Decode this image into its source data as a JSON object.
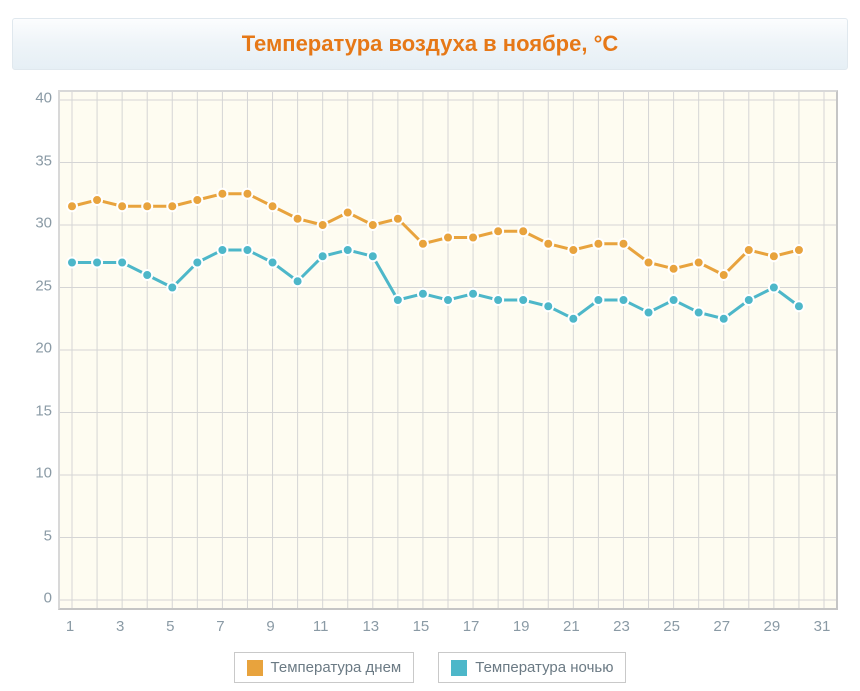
{
  "title": "Температура воздуха в ноябре, °C",
  "chart": {
    "type": "line",
    "background_color": "#fefcf1",
    "grid_color": "#d5d5d5",
    "border_color": "#c5c5c5",
    "axis_label_color": "#8a9aa5",
    "axis_fontsize": 15,
    "xlim": [
      1,
      31
    ],
    "ylim": [
      0,
      40
    ],
    "ytick_step": 5,
    "xtick_step": 2,
    "x_values": [
      1,
      2,
      3,
      4,
      5,
      6,
      7,
      8,
      9,
      10,
      11,
      12,
      13,
      14,
      15,
      16,
      17,
      18,
      19,
      20,
      21,
      22,
      23,
      24,
      25,
      26,
      27,
      28,
      29,
      30
    ],
    "marker_style": "circle",
    "marker_radius": 5,
    "marker_border_color": "#ffffff",
    "marker_border_width": 2,
    "line_width": 3,
    "series": [
      {
        "name": "day",
        "label": "Температура днем",
        "color": "#e8a33d",
        "values": [
          31.5,
          32.0,
          31.5,
          31.5,
          31.5,
          32.0,
          32.5,
          32.5,
          31.5,
          30.5,
          30.0,
          31.0,
          30.0,
          30.5,
          28.5,
          29.0,
          29.0,
          29.5,
          29.5,
          28.5,
          28.0,
          28.5,
          28.5,
          27.0,
          26.5,
          27.0,
          26.0,
          28.0,
          27.5,
          28.0
        ]
      },
      {
        "name": "night",
        "label": "Температура ночью",
        "color": "#4db7c9",
        "values": [
          27.0,
          27.0,
          27.0,
          26.0,
          25.0,
          27.0,
          28.0,
          28.0,
          27.0,
          25.5,
          27.5,
          28.0,
          27.5,
          24.0,
          24.5,
          24.0,
          24.5,
          24.0,
          24.0,
          23.5,
          22.5,
          24.0,
          24.0,
          23.0,
          24.0,
          23.0,
          22.5,
          24.0,
          25.0,
          23.5
        ]
      }
    ]
  },
  "title_style": {
    "color": "#e67817",
    "fontsize": 22,
    "fontweight": "bold",
    "bar_gradient_top": "#fcfdfe",
    "bar_gradient_bottom": "#e6eff5",
    "bar_border": "#e0e8ee"
  },
  "legend": {
    "position": "bottom",
    "border_color": "#c9c9c9",
    "label_color": "#6b7a84",
    "fontsize": 15
  }
}
